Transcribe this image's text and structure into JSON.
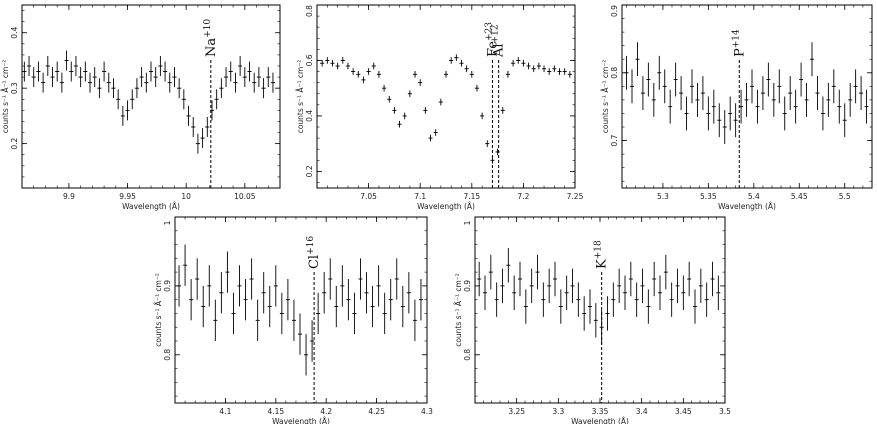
{
  "chart_data": [
    {
      "type": "scatter",
      "xlim": [
        9.86,
        10.08
      ],
      "ylim": [
        0.12,
        0.45
      ],
      "xticks": [
        9.9,
        9.95,
        10,
        10.05
      ],
      "xticklabels": [
        "9.9",
        "9.95",
        "10",
        "10.05"
      ],
      "yticks": [
        0.2,
        0.3,
        0.4
      ],
      "yticklabels": [
        "0.2",
        "0.3",
        "0.4"
      ],
      "xlabel": "Wavelength (Å)",
      "ylabel": "counts s⁻¹ Å⁻¹ cm⁻²",
      "error_bars": true,
      "lines": [
        {
          "x": 10.021,
          "element": "Na",
          "charge": "+10"
        }
      ],
      "points": {
        "x": [
          9.862,
          9.866,
          9.87,
          9.874,
          9.878,
          9.882,
          9.886,
          9.89,
          9.894,
          9.898,
          9.902,
          9.906,
          9.91,
          9.914,
          9.918,
          9.922,
          9.926,
          9.93,
          9.934,
          9.938,
          9.942,
          9.946,
          9.95,
          9.954,
          9.958,
          9.962,
          9.966,
          9.97,
          9.974,
          9.978,
          9.982,
          9.986,
          9.99,
          9.994,
          9.998,
          10.002,
          10.006,
          10.01,
          10.014,
          10.018,
          10.022,
          10.026,
          10.03,
          10.034,
          10.038,
          10.042,
          10.046,
          10.05,
          10.054,
          10.058,
          10.062,
          10.066,
          10.07,
          10.074
        ],
        "y": [
          0.33,
          0.34,
          0.32,
          0.33,
          0.31,
          0.34,
          0.32,
          0.33,
          0.31,
          0.35,
          0.33,
          0.34,
          0.32,
          0.33,
          0.31,
          0.32,
          0.3,
          0.33,
          0.31,
          0.3,
          0.28,
          0.25,
          0.26,
          0.28,
          0.3,
          0.32,
          0.31,
          0.33,
          0.32,
          0.34,
          0.33,
          0.31,
          0.32,
          0.3,
          0.28,
          0.25,
          0.23,
          0.2,
          0.21,
          0.23,
          0.26,
          0.28,
          0.3,
          0.32,
          0.33,
          0.31,
          0.34,
          0.32,
          0.33,
          0.31,
          0.32,
          0.3,
          0.32,
          0.31
        ],
        "err": [
          0.018,
          0.018,
          0.018,
          0.018,
          0.018,
          0.018,
          0.018,
          0.018,
          0.018,
          0.018,
          0.018,
          0.018,
          0.018,
          0.018,
          0.018,
          0.018,
          0.018,
          0.018,
          0.018,
          0.018,
          0.018,
          0.018,
          0.018,
          0.018,
          0.018,
          0.018,
          0.018,
          0.018,
          0.018,
          0.018,
          0.018,
          0.018,
          0.018,
          0.018,
          0.018,
          0.018,
          0.018,
          0.018,
          0.018,
          0.018,
          0.018,
          0.018,
          0.018,
          0.018,
          0.018,
          0.018,
          0.018,
          0.018,
          0.018,
          0.018,
          0.018,
          0.018,
          0.018,
          0.018
        ]
      }
    },
    {
      "type": "scatter",
      "xlim": [
        7.0,
        7.25
      ],
      "ylim": [
        0.14,
        0.8
      ],
      "xticks": [
        7.05,
        7.1,
        7.15,
        7.2,
        7.25
      ],
      "xticklabels": [
        "7.05",
        "7.1",
        "7.15",
        "7.2",
        "7.25"
      ],
      "yticks": [
        0.2,
        0.4,
        0.6,
        0.8
      ],
      "yticklabels": [
        "0.2",
        "0.4",
        "0.6",
        "0.8"
      ],
      "xlabel": "Wavelength (Å)",
      "ylabel": "counts s⁻¹ Å⁻¹ cm⁻²",
      "error_bars": true,
      "lines": [
        {
          "x": 7.17,
          "element": "Fe",
          "charge": "+23"
        },
        {
          "x": 7.176,
          "element": "Al",
          "charge": "+12"
        }
      ],
      "points": {
        "x": [
          7.005,
          7.01,
          7.015,
          7.02,
          7.025,
          7.03,
          7.035,
          7.04,
          7.045,
          7.05,
          7.055,
          7.06,
          7.065,
          7.07,
          7.075,
          7.08,
          7.085,
          7.09,
          7.095,
          7.1,
          7.105,
          7.11,
          7.115,
          7.12,
          7.125,
          7.13,
          7.135,
          7.14,
          7.145,
          7.15,
          7.155,
          7.16,
          7.165,
          7.17,
          7.175,
          7.18,
          7.185,
          7.19,
          7.195,
          7.2,
          7.205,
          7.21,
          7.215,
          7.22,
          7.225,
          7.23,
          7.235,
          7.24,
          7.245
        ],
        "y": [
          0.59,
          0.6,
          0.59,
          0.58,
          0.6,
          0.58,
          0.56,
          0.55,
          0.53,
          0.56,
          0.58,
          0.55,
          0.5,
          0.46,
          0.42,
          0.37,
          0.4,
          0.48,
          0.55,
          0.52,
          0.42,
          0.32,
          0.34,
          0.45,
          0.55,
          0.6,
          0.61,
          0.59,
          0.57,
          0.55,
          0.5,
          0.4,
          0.3,
          0.24,
          0.27,
          0.42,
          0.55,
          0.59,
          0.6,
          0.59,
          0.58,
          0.57,
          0.58,
          0.57,
          0.56,
          0.57,
          0.56,
          0.56,
          0.55
        ],
        "err": [
          0.012,
          0.012,
          0.012,
          0.012,
          0.012,
          0.012,
          0.012,
          0.012,
          0.012,
          0.012,
          0.012,
          0.012,
          0.012,
          0.012,
          0.012,
          0.012,
          0.012,
          0.012,
          0.012,
          0.012,
          0.012,
          0.012,
          0.012,
          0.012,
          0.012,
          0.012,
          0.012,
          0.012,
          0.012,
          0.012,
          0.012,
          0.012,
          0.012,
          0.012,
          0.012,
          0.012,
          0.012,
          0.012,
          0.012,
          0.012,
          0.012,
          0.012,
          0.012,
          0.012,
          0.012,
          0.012,
          0.012,
          0.012,
          0.012
        ]
      }
    },
    {
      "type": "scatter",
      "xlim": [
        5.255,
        5.53
      ],
      "ylim": [
        0.63,
        0.9
      ],
      "xticks": [
        5.3,
        5.35,
        5.4,
        5.45,
        5.5
      ],
      "xticklabels": [
        "5.3",
        "5.35",
        "5.4",
        "5.45",
        "5.5"
      ],
      "yticks": [
        0.7,
        0.8,
        0.9
      ],
      "yticklabels": [
        "0.7",
        "0.8",
        "0.9"
      ],
      "xlabel": "Wavelength (Å)",
      "ylabel": "counts s⁻¹ Å⁻¹ cm⁻²",
      "error_bars": true,
      "lines": [
        {
          "x": 5.384,
          "element": "P",
          "charge": "+14"
        }
      ],
      "points": {
        "x": [
          5.26,
          5.266,
          5.272,
          5.278,
          5.284,
          5.29,
          5.296,
          5.302,
          5.308,
          5.314,
          5.32,
          5.326,
          5.332,
          5.338,
          5.344,
          5.35,
          5.356,
          5.362,
          5.368,
          5.374,
          5.38,
          5.386,
          5.392,
          5.398,
          5.404,
          5.41,
          5.416,
          5.422,
          5.428,
          5.434,
          5.44,
          5.446,
          5.452,
          5.458,
          5.464,
          5.47,
          5.476,
          5.482,
          5.488,
          5.494,
          5.5,
          5.506,
          5.512,
          5.518,
          5.524
        ],
        "y": [
          0.8,
          0.78,
          0.82,
          0.77,
          0.79,
          0.76,
          0.8,
          0.78,
          0.75,
          0.79,
          0.77,
          0.74,
          0.78,
          0.76,
          0.77,
          0.74,
          0.75,
          0.73,
          0.72,
          0.74,
          0.73,
          0.75,
          0.76,
          0.78,
          0.75,
          0.77,
          0.79,
          0.76,
          0.78,
          0.74,
          0.77,
          0.75,
          0.79,
          0.76,
          0.82,
          0.77,
          0.74,
          0.76,
          0.78,
          0.75,
          0.73,
          0.76,
          0.78,
          0.77,
          0.75
        ],
        "err": [
          0.025,
          0.025,
          0.025,
          0.025,
          0.025,
          0.025,
          0.025,
          0.025,
          0.025,
          0.025,
          0.025,
          0.025,
          0.025,
          0.025,
          0.025,
          0.025,
          0.025,
          0.025,
          0.025,
          0.025,
          0.025,
          0.025,
          0.025,
          0.025,
          0.025,
          0.025,
          0.025,
          0.025,
          0.025,
          0.025,
          0.025,
          0.025,
          0.025,
          0.025,
          0.025,
          0.025,
          0.025,
          0.025,
          0.025,
          0.025,
          0.025,
          0.025,
          0.025,
          0.025,
          0.025
        ]
      }
    },
    {
      "type": "scatter",
      "xlim": [
        4.05,
        4.3
      ],
      "ylim": [
        0.73,
        1.0
      ],
      "xticks": [
        4.1,
        4.15,
        4.2,
        4.25,
        4.3
      ],
      "xticklabels": [
        "4.1",
        "4.15",
        "4.2",
        "4.25",
        "4.3"
      ],
      "yticks": [
        0.8,
        0.9,
        1.0
      ],
      "yticklabels": [
        "0.8",
        "0.9",
        "1"
      ],
      "xlabel": "Wavelength (Å)",
      "ylabel": "counts s⁻¹ Å⁻¹ cm⁻²",
      "error_bars": true,
      "lines": [
        {
          "x": 4.188,
          "element": "Cl",
          "charge": "+16"
        }
      ],
      "points": {
        "x": [
          4.054,
          4.06,
          4.066,
          4.072,
          4.078,
          4.084,
          4.09,
          4.096,
          4.102,
          4.108,
          4.114,
          4.12,
          4.126,
          4.132,
          4.138,
          4.144,
          4.15,
          4.156,
          4.162,
          4.168,
          4.174,
          4.18,
          4.186,
          4.192,
          4.198,
          4.204,
          4.21,
          4.216,
          4.222,
          4.228,
          4.234,
          4.24,
          4.246,
          4.252,
          4.258,
          4.264,
          4.27,
          4.276,
          4.282,
          4.288,
          4.294
        ],
        "y": [
          0.9,
          0.93,
          0.88,
          0.91,
          0.87,
          0.9,
          0.85,
          0.89,
          0.92,
          0.86,
          0.9,
          0.88,
          0.91,
          0.85,
          0.89,
          0.87,
          0.9,
          0.86,
          0.88,
          0.85,
          0.83,
          0.8,
          0.82,
          0.86,
          0.89,
          0.91,
          0.87,
          0.9,
          0.88,
          0.86,
          0.91,
          0.89,
          0.87,
          0.9,
          0.86,
          0.88,
          0.91,
          0.87,
          0.89,
          0.85,
          0.88
        ],
        "err": [
          0.03,
          0.03,
          0.03,
          0.03,
          0.03,
          0.03,
          0.03,
          0.03,
          0.03,
          0.03,
          0.03,
          0.03,
          0.03,
          0.03,
          0.03,
          0.03,
          0.03,
          0.03,
          0.03,
          0.03,
          0.03,
          0.03,
          0.03,
          0.03,
          0.03,
          0.03,
          0.03,
          0.03,
          0.03,
          0.03,
          0.03,
          0.03,
          0.03,
          0.03,
          0.03,
          0.03,
          0.03,
          0.03,
          0.03,
          0.03,
          0.03
        ]
      }
    },
    {
      "type": "scatter",
      "xlim": [
        3.2,
        3.5
      ],
      "ylim": [
        0.73,
        1.0
      ],
      "xticks": [
        3.25,
        3.3,
        3.35,
        3.4,
        3.45,
        3.5
      ],
      "xticklabels": [
        "3.25",
        "3.3",
        "3.35",
        "3.4",
        "3.45",
        "3.5"
      ],
      "yticks": [
        0.8,
        0.9,
        1.0
      ],
      "yticklabels": [
        "0.8",
        "0.9",
        "1"
      ],
      "xlabel": "Wavelength (Å)",
      "ylabel": "counts s⁻¹ Å⁻¹ cm⁻²",
      "error_bars": true,
      "lines": [
        {
          "x": 3.352,
          "element": "K",
          "charge": "+18"
        }
      ],
      "points": {
        "x": [
          3.205,
          3.212,
          3.219,
          3.226,
          3.233,
          3.24,
          3.247,
          3.254,
          3.261,
          3.268,
          3.275,
          3.282,
          3.289,
          3.296,
          3.303,
          3.31,
          3.317,
          3.324,
          3.331,
          3.338,
          3.345,
          3.352,
          3.359,
          3.366,
          3.373,
          3.38,
          3.387,
          3.394,
          3.401,
          3.408,
          3.415,
          3.422,
          3.429,
          3.436,
          3.443,
          3.45,
          3.457,
          3.464,
          3.471,
          3.478,
          3.485,
          3.492
        ],
        "y": [
          0.91,
          0.89,
          0.92,
          0.88,
          0.9,
          0.93,
          0.89,
          0.91,
          0.87,
          0.9,
          0.92,
          0.88,
          0.9,
          0.91,
          0.87,
          0.89,
          0.9,
          0.88,
          0.86,
          0.87,
          0.85,
          0.84,
          0.86,
          0.88,
          0.9,
          0.89,
          0.91,
          0.88,
          0.9,
          0.87,
          0.91,
          0.89,
          0.92,
          0.88,
          0.9,
          0.89,
          0.91,
          0.87,
          0.9,
          0.88,
          0.91,
          0.89
        ],
        "err": [
          0.025,
          0.025,
          0.025,
          0.025,
          0.025,
          0.025,
          0.025,
          0.025,
          0.025,
          0.025,
          0.025,
          0.025,
          0.025,
          0.025,
          0.025,
          0.025,
          0.025,
          0.025,
          0.025,
          0.025,
          0.025,
          0.025,
          0.025,
          0.025,
          0.025,
          0.025,
          0.025,
          0.025,
          0.025,
          0.025,
          0.025,
          0.025,
          0.025,
          0.025,
          0.025,
          0.025,
          0.025,
          0.025,
          0.025,
          0.025,
          0.025,
          0.025
        ]
      }
    }
  ]
}
